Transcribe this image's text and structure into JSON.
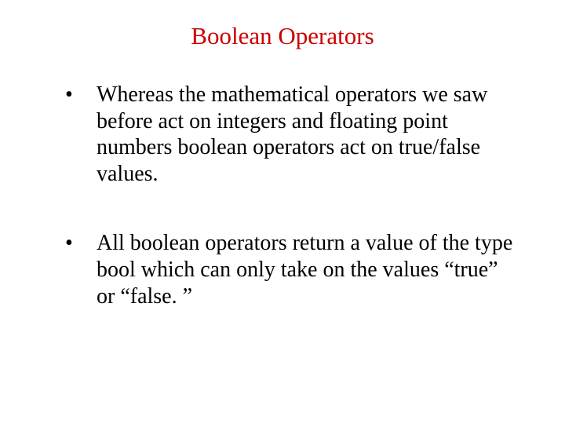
{
  "slide": {
    "title": "Boolean Operators",
    "title_color": "#cc0000",
    "title_fontsize": 31,
    "background_color": "#ffffff",
    "body_color": "#000000",
    "body_fontsize": 28,
    "font_family": "Times New Roman",
    "bullets": [
      {
        "marker": "•",
        "text": "Whereas the mathematical operators we saw before act on integers and floating point numbers boolean operators act on true/false values."
      },
      {
        "marker": "•",
        "text": "All boolean operators return a value of the type bool which can only take on the values “true” or “false. ”"
      }
    ]
  }
}
